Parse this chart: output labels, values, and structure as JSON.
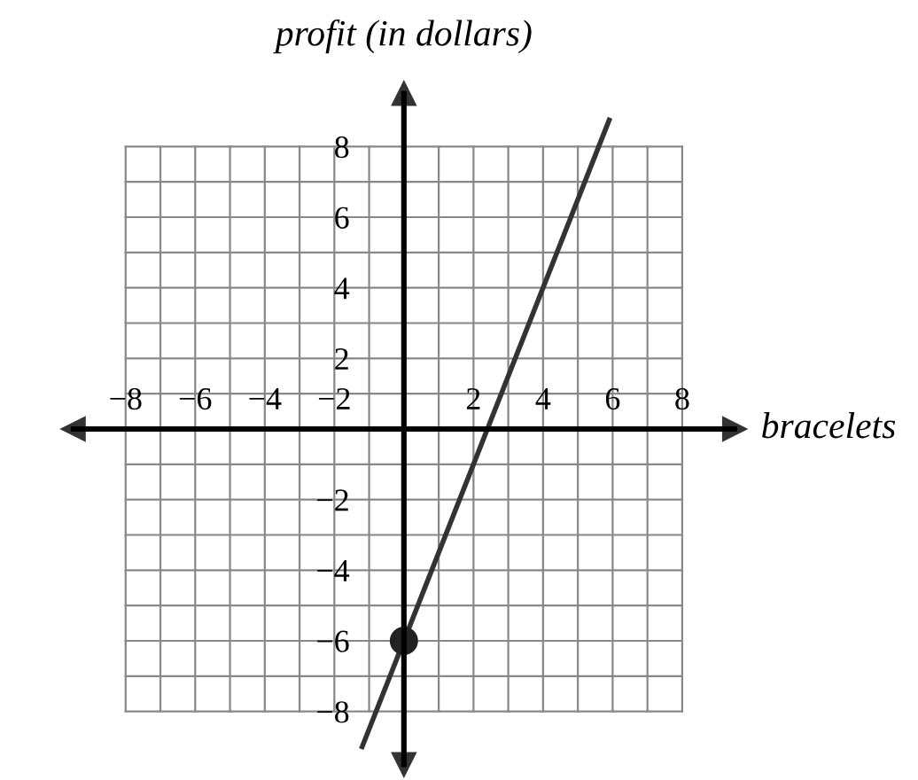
{
  "chart_data": {
    "type": "line",
    "xlabel": "bracelets",
    "ylabel": "profit (in dollars)",
    "xlim": [
      -9.5,
      9.5
    ],
    "ylim": [
      -9.5,
      9.5
    ],
    "xticks": [
      -8,
      -6,
      -4,
      -2,
      2,
      4,
      6,
      8
    ],
    "yticks": [
      -8,
      -6,
      -4,
      -2,
      2,
      4,
      6,
      8
    ],
    "grid": true,
    "marker": "none",
    "series": [
      {
        "color": "#333333",
        "x": [
          -1.2,
          5.9
        ],
        "values": [
          -9,
          8.75
        ]
      },
      {
        "type": "scatter",
        "color": "#222222",
        "x": [
          0
        ],
        "values": [
          -6
        ],
        "marker": "circle"
      }
    ]
  }
}
